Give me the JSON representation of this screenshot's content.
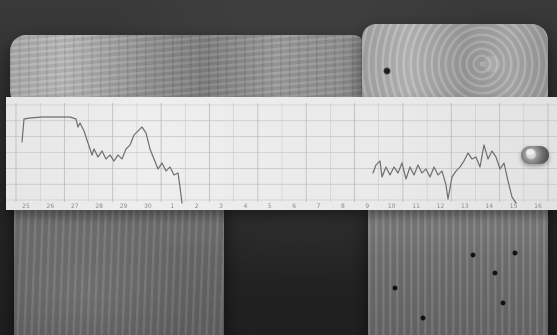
{
  "scene": {
    "description_items": [
      "wood-block",
      "paper-strip",
      "pushpin"
    ]
  },
  "strip": {
    "tick_labels": [
      "25",
      "26",
      "27",
      "28",
      "29",
      "30",
      "1",
      "2",
      "3",
      "4",
      "5",
      "6",
      "7",
      "8",
      "9",
      "10",
      "11",
      "12",
      "13",
      "14",
      "15",
      "16"
    ]
  },
  "colors": {
    "paper": "#eeeeee",
    "grid": "#b7b7b7",
    "trace": "#6e6e6e",
    "wood_light": "#b7b7b7",
    "wood_dark": "#6b6b6b"
  }
}
